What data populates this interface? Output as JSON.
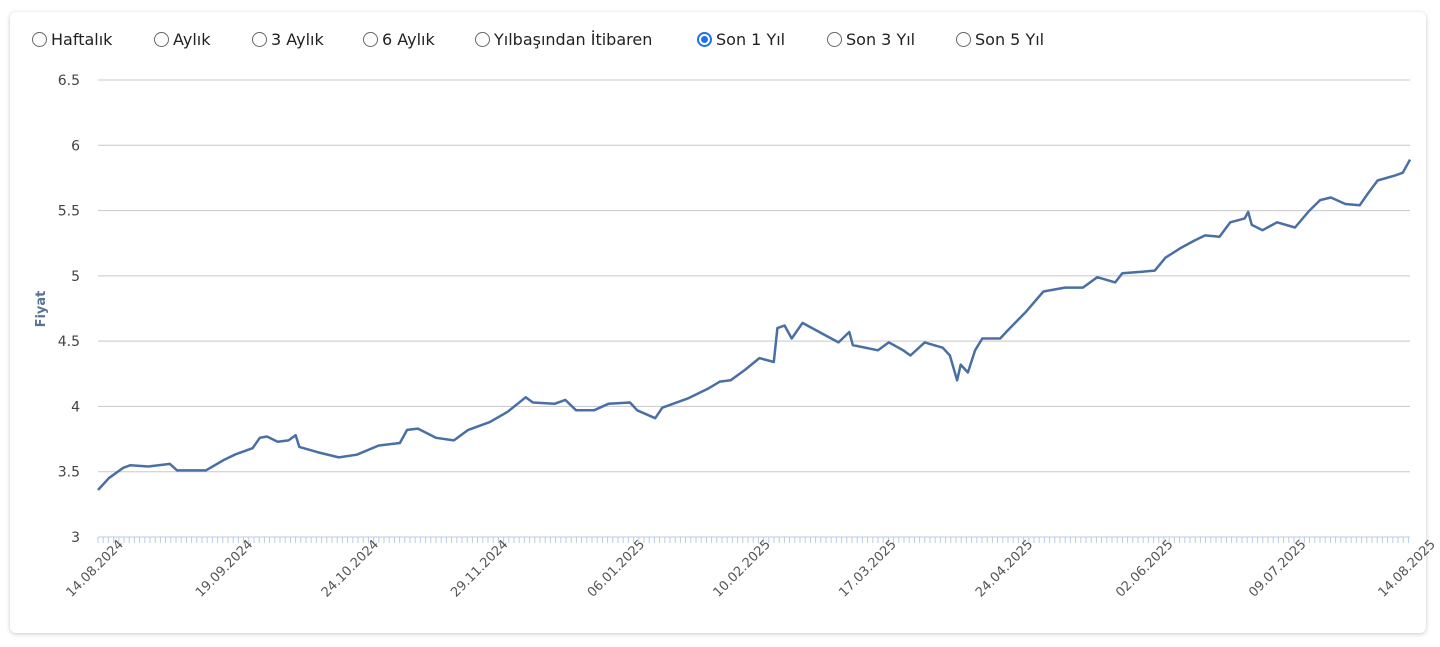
{
  "periods": [
    {
      "label": "Haftalık",
      "selected": false
    },
    {
      "label": "Aylık",
      "selected": false
    },
    {
      "label": "3 Aylık",
      "selected": false
    },
    {
      "label": "6 Aylık",
      "selected": false
    },
    {
      "label": "Yılbaşından İtibaren",
      "selected": false
    },
    {
      "label": "Son 1 Yıl",
      "selected": true
    },
    {
      "label": "Son 3 Yıl",
      "selected": false
    },
    {
      "label": "Son 5 Yıl",
      "selected": false
    }
  ],
  "colors": {
    "line": "#4a6fa5",
    "grid": "#c8c8c8",
    "accent": "#1a73e8"
  },
  "chart_data": {
    "type": "line",
    "title": "",
    "xlabel": "",
    "ylabel": "Fiyat",
    "ylim": [
      3,
      6.5
    ],
    "yticks": [
      "3",
      "3.5",
      "4",
      "4.5",
      "5",
      "5.5",
      "6",
      "6.5"
    ],
    "xlim": [
      "2024-08-14",
      "2025-08-14"
    ],
    "xticks": [
      {
        "date": "2024-08-14",
        "label": "14.08.2024"
      },
      {
        "date": "2024-09-19",
        "label": "19.09.2024"
      },
      {
        "date": "2024-10-24",
        "label": "24.10.2024"
      },
      {
        "date": "2024-11-29",
        "label": "29.11.2024"
      },
      {
        "date": "2025-01-06",
        "label": "06.01.2025"
      },
      {
        "date": "2025-02-10",
        "label": "10.02.2025"
      },
      {
        "date": "2025-03-17",
        "label": "17.03.2025"
      },
      {
        "date": "2025-04-24",
        "label": "24.04.2025"
      },
      {
        "date": "2025-06-02",
        "label": "02.06.2025"
      },
      {
        "date": "2025-07-09",
        "label": "09.07.2025"
      },
      {
        "date": "2025-08-14",
        "label": "14.08.2025"
      }
    ],
    "grid": true,
    "legend": "none",
    "series": [
      {
        "points": [
          [
            "2024-08-14",
            3.36
          ],
          [
            "2024-08-17",
            3.45
          ],
          [
            "2024-08-21",
            3.53
          ],
          [
            "2024-08-23",
            3.55
          ],
          [
            "2024-08-28",
            3.54
          ],
          [
            "2024-09-03",
            3.56
          ],
          [
            "2024-09-05",
            3.51
          ],
          [
            "2024-09-10",
            3.51
          ],
          [
            "2024-09-13",
            3.51
          ],
          [
            "2024-09-18",
            3.59
          ],
          [
            "2024-09-21",
            3.63
          ],
          [
            "2024-09-26",
            3.68
          ],
          [
            "2024-09-28",
            3.76
          ],
          [
            "2024-09-30",
            3.77
          ],
          [
            "2024-10-03",
            3.73
          ],
          [
            "2024-10-06",
            3.74
          ],
          [
            "2024-10-08",
            3.78
          ],
          [
            "2024-10-09",
            3.69
          ],
          [
            "2024-10-14",
            3.65
          ],
          [
            "2024-10-20",
            3.61
          ],
          [
            "2024-10-25",
            3.63
          ],
          [
            "2024-10-31",
            3.7
          ],
          [
            "2024-11-06",
            3.72
          ],
          [
            "2024-11-08",
            3.82
          ],
          [
            "2024-11-11",
            3.83
          ],
          [
            "2024-11-16",
            3.76
          ],
          [
            "2024-11-21",
            3.74
          ],
          [
            "2024-11-25",
            3.82
          ],
          [
            "2024-12-01",
            3.88
          ],
          [
            "2024-12-06",
            3.96
          ],
          [
            "2024-12-11",
            4.07
          ],
          [
            "2024-12-13",
            4.03
          ],
          [
            "2024-12-19",
            4.02
          ],
          [
            "2024-12-22",
            4.05
          ],
          [
            "2024-12-25",
            3.97
          ],
          [
            "2024-12-30",
            3.97
          ],
          [
            "2025-01-03",
            4.02
          ],
          [
            "2025-01-09",
            4.03
          ],
          [
            "2025-01-11",
            3.97
          ],
          [
            "2025-01-16",
            3.91
          ],
          [
            "2025-01-18",
            3.99
          ],
          [
            "2025-01-25",
            4.06
          ],
          [
            "2025-01-28",
            4.1
          ],
          [
            "2025-01-31",
            4.14
          ],
          [
            "2025-02-03",
            4.19
          ],
          [
            "2025-02-06",
            4.2
          ],
          [
            "2025-02-10",
            4.28
          ],
          [
            "2025-02-14",
            4.37
          ],
          [
            "2025-02-18",
            4.34
          ],
          [
            "2025-02-19",
            4.6
          ],
          [
            "2025-02-21",
            4.62
          ],
          [
            "2025-02-23",
            4.52
          ],
          [
            "2025-02-26",
            4.64
          ],
          [
            "2025-03-04",
            4.55
          ],
          [
            "2025-03-08",
            4.49
          ],
          [
            "2025-03-11",
            4.57
          ],
          [
            "2025-03-12",
            4.47
          ],
          [
            "2025-03-19",
            4.43
          ],
          [
            "2025-03-22",
            4.49
          ],
          [
            "2025-03-26",
            4.43
          ],
          [
            "2025-03-28",
            4.39
          ],
          [
            "2025-04-01",
            4.49
          ],
          [
            "2025-04-06",
            4.45
          ],
          [
            "2025-04-08",
            4.39
          ],
          [
            "2025-04-10",
            4.2
          ],
          [
            "2025-04-11",
            4.32
          ],
          [
            "2025-04-13",
            4.26
          ],
          [
            "2025-04-15",
            4.43
          ],
          [
            "2025-04-17",
            4.52
          ],
          [
            "2025-04-22",
            4.52
          ],
          [
            "2025-04-24",
            4.58
          ],
          [
            "2025-04-29",
            4.72
          ],
          [
            "2025-05-04",
            4.88
          ],
          [
            "2025-05-10",
            4.91
          ],
          [
            "2025-05-15",
            4.91
          ],
          [
            "2025-05-19",
            4.99
          ],
          [
            "2025-05-24",
            4.95
          ],
          [
            "2025-05-26",
            5.02
          ],
          [
            "2025-05-31",
            5.03
          ],
          [
            "2025-06-04",
            5.04
          ],
          [
            "2025-06-07",
            5.14
          ],
          [
            "2025-06-11",
            5.21
          ],
          [
            "2025-06-15",
            5.27
          ],
          [
            "2025-06-18",
            5.31
          ],
          [
            "2025-06-22",
            5.3
          ],
          [
            "2025-06-25",
            5.41
          ],
          [
            "2025-06-29",
            5.44
          ],
          [
            "2025-06-30",
            5.49
          ],
          [
            "2025-07-01",
            5.39
          ],
          [
            "2025-07-04",
            5.35
          ],
          [
            "2025-07-08",
            5.41
          ],
          [
            "2025-07-13",
            5.37
          ],
          [
            "2025-07-17",
            5.5
          ],
          [
            "2025-07-20",
            5.58
          ],
          [
            "2025-07-23",
            5.6
          ],
          [
            "2025-07-27",
            5.55
          ],
          [
            "2025-07-31",
            5.54
          ],
          [
            "2025-08-02",
            5.62
          ],
          [
            "2025-08-05",
            5.73
          ],
          [
            "2025-08-10",
            5.77
          ],
          [
            "2025-08-12",
            5.79
          ],
          [
            "2025-08-14",
            5.89
          ]
        ]
      }
    ]
  }
}
